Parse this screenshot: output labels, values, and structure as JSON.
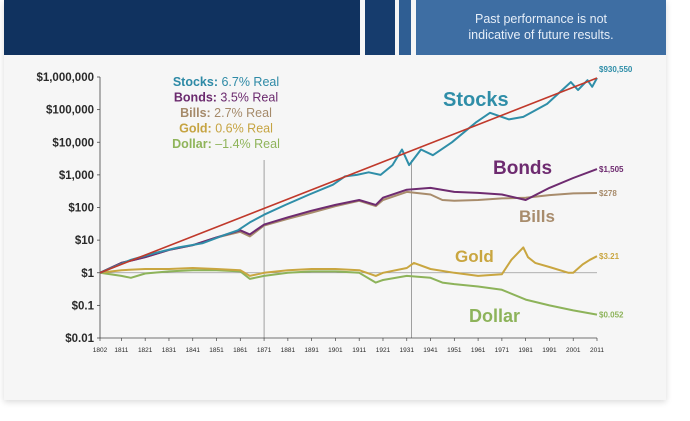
{
  "header": {
    "note": "Past performance is not\nindicative of future results."
  },
  "chart_data": {
    "type": "line",
    "y_scale": "log",
    "ylim": [
      0.01,
      1000000
    ],
    "xlim": [
      1802,
      2011
    ],
    "y_ticks": [
      {
        "value": 0.01,
        "label": "$0.01"
      },
      {
        "value": 0.1,
        "label": "$0.1"
      },
      {
        "value": 1,
        "label": "$1"
      },
      {
        "value": 10,
        "label": "$10"
      },
      {
        "value": 100,
        "label": "$100"
      },
      {
        "value": 1000,
        "label": "$1,000"
      },
      {
        "value": 10000,
        "label": "$10,000"
      },
      {
        "value": 100000,
        "label": "$100,000"
      },
      {
        "value": 1000000,
        "label": "$1,000,000"
      }
    ],
    "x_ticks": [
      "1802",
      "1811",
      "1821",
      "1831",
      "1841",
      "1851",
      "1861",
      "1871",
      "1881",
      "1891",
      "1901",
      "1911",
      "1921",
      "1931",
      "1941",
      "1951",
      "1961",
      "1971",
      "1981",
      "1991",
      "2001",
      "2011"
    ],
    "vertical_lines": [
      1871,
      1933
    ],
    "legend": [
      {
        "label": "Stocks:",
        "value": "6.7% Real",
        "color": "#2e8aa6"
      },
      {
        "label": "Bonds:",
        "value": "3.5% Real",
        "color": "#6b2a6e"
      },
      {
        "label": "Bills:",
        "value": "2.7% Real",
        "color": "#a58a6a"
      },
      {
        "label": "Gold:",
        "value": "0.6% Real",
        "color": "#c6a442"
      },
      {
        "label": "Dollar:",
        "value": "–1.4% Real",
        "color": "#8fb45a"
      }
    ],
    "trend_line": {
      "color": "#c0392b",
      "points": [
        [
          1802,
          1
        ],
        [
          2011,
          930550
        ]
      ]
    },
    "series": [
      {
        "name": "Stocks",
        "color": "#2f8ea8",
        "end_label": "$930,550",
        "points": [
          [
            1802,
            1
          ],
          [
            1815,
            2.5
          ],
          [
            1825,
            4
          ],
          [
            1835,
            6
          ],
          [
            1845,
            8
          ],
          [
            1855,
            15
          ],
          [
            1860,
            20
          ],
          [
            1865,
            35
          ],
          [
            1871,
            60
          ],
          [
            1880,
            120
          ],
          [
            1890,
            250
          ],
          [
            1900,
            500
          ],
          [
            1905,
            900
          ],
          [
            1910,
            1000
          ],
          [
            1915,
            1200
          ],
          [
            1920,
            1000
          ],
          [
            1925,
            2000
          ],
          [
            1929,
            6000
          ],
          [
            1932,
            2000
          ],
          [
            1937,
            6000
          ],
          [
            1942,
            4000
          ],
          [
            1950,
            10000
          ],
          [
            1960,
            40000
          ],
          [
            1966,
            80000
          ],
          [
            1974,
            50000
          ],
          [
            1980,
            60000
          ],
          [
            1990,
            150000
          ],
          [
            2000,
            700000
          ],
          [
            2003,
            400000
          ],
          [
            2007,
            800000
          ],
          [
            2009,
            500000
          ],
          [
            2011,
            930550
          ]
        ]
      },
      {
        "name": "Bonds",
        "color": "#6e2b70",
        "end_label": "$1,505",
        "points": [
          [
            1802,
            1
          ],
          [
            1811,
            2
          ],
          [
            1821,
            3
          ],
          [
            1831,
            5
          ],
          [
            1841,
            7
          ],
          [
            1851,
            12
          ],
          [
            1861,
            20
          ],
          [
            1865,
            15
          ],
          [
            1871,
            30
          ],
          [
            1881,
            50
          ],
          [
            1891,
            80
          ],
          [
            1901,
            120
          ],
          [
            1911,
            170
          ],
          [
            1918,
            120
          ],
          [
            1921,
            200
          ],
          [
            1931,
            350
          ],
          [
            1941,
            400
          ],
          [
            1951,
            300
          ],
          [
            1961,
            280
          ],
          [
            1971,
            250
          ],
          [
            1981,
            170
          ],
          [
            1991,
            400
          ],
          [
            2001,
            800
          ],
          [
            2011,
            1505
          ]
        ]
      },
      {
        "name": "Bills",
        "color": "#a88c6c",
        "end_label": "$278",
        "points": [
          [
            1802,
            1
          ],
          [
            1811,
            2
          ],
          [
            1821,
            3
          ],
          [
            1831,
            5
          ],
          [
            1841,
            7
          ],
          [
            1851,
            12
          ],
          [
            1861,
            18
          ],
          [
            1865,
            13
          ],
          [
            1871,
            28
          ],
          [
            1881,
            45
          ],
          [
            1891,
            70
          ],
          [
            1901,
            110
          ],
          [
            1911,
            160
          ],
          [
            1918,
            110
          ],
          [
            1921,
            170
          ],
          [
            1931,
            300
          ],
          [
            1941,
            250
          ],
          [
            1946,
            170
          ],
          [
            1951,
            160
          ],
          [
            1961,
            170
          ],
          [
            1971,
            190
          ],
          [
            1981,
            200
          ],
          [
            1991,
            240
          ],
          [
            2001,
            270
          ],
          [
            2011,
            278
          ]
        ]
      },
      {
        "name": "Gold",
        "color": "#c9a640",
        "end_label": "$3.21",
        "points": [
          [
            1802,
            1
          ],
          [
            1811,
            1.2
          ],
          [
            1821,
            1.3
          ],
          [
            1831,
            1.3
          ],
          [
            1841,
            1.4
          ],
          [
            1851,
            1.3
          ],
          [
            1861,
            1.2
          ],
          [
            1865,
            0.8
          ],
          [
            1871,
            1.0
          ],
          [
            1881,
            1.2
          ],
          [
            1891,
            1.3
          ],
          [
            1901,
            1.3
          ],
          [
            1911,
            1.2
          ],
          [
            1918,
            0.8
          ],
          [
            1921,
            1.0
          ],
          [
            1931,
            1.4
          ],
          [
            1934,
            2.0
          ],
          [
            1941,
            1.3
          ],
          [
            1951,
            1.0
          ],
          [
            1961,
            0.8
          ],
          [
            1971,
            0.9
          ],
          [
            1975,
            2.5
          ],
          [
            1980,
            6.0
          ],
          [
            1982,
            3.0
          ],
          [
            1985,
            2.0
          ],
          [
            1991,
            1.5
          ],
          [
            1999,
            1.0
          ],
          [
            2001,
            1.0
          ],
          [
            2005,
            1.8
          ],
          [
            2008,
            2.5
          ],
          [
            2011,
            3.21
          ]
        ]
      },
      {
        "name": "Dollar",
        "color": "#8db35a",
        "end_label": "$0.052",
        "points": [
          [
            1802,
            1
          ],
          [
            1811,
            0.8
          ],
          [
            1815,
            0.7
          ],
          [
            1821,
            0.95
          ],
          [
            1831,
            1.1
          ],
          [
            1841,
            1.2
          ],
          [
            1851,
            1.2
          ],
          [
            1861,
            1.1
          ],
          [
            1865,
            0.65
          ],
          [
            1871,
            0.8
          ],
          [
            1881,
            1.0
          ],
          [
            1891,
            1.1
          ],
          [
            1901,
            1.1
          ],
          [
            1911,
            1.0
          ],
          [
            1918,
            0.5
          ],
          [
            1921,
            0.6
          ],
          [
            1931,
            0.8
          ],
          [
            1941,
            0.7
          ],
          [
            1946,
            0.5
          ],
          [
            1951,
            0.45
          ],
          [
            1961,
            0.38
          ],
          [
            1971,
            0.3
          ],
          [
            1981,
            0.15
          ],
          [
            1991,
            0.1
          ],
          [
            2001,
            0.07
          ],
          [
            2011,
            0.052
          ]
        ]
      }
    ]
  }
}
